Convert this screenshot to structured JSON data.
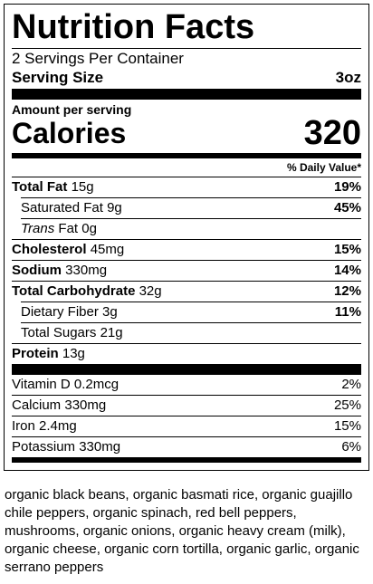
{
  "label": {
    "title": "Nutrition Facts",
    "servings": "2 Servings Per Container",
    "serving_size": {
      "name": "Serving Size",
      "value": "3oz"
    },
    "amount_per_serving": "Amount per serving",
    "calories": {
      "name": "Calories",
      "value": "320"
    },
    "dv_header": "% Daily Value*",
    "nutrients": [
      {
        "name": "Total Fat",
        "amount": "15g",
        "dv": "19%"
      },
      {
        "name": "Saturated Fat",
        "amount": "9g",
        "dv": "45%"
      },
      {
        "prefix": "Trans",
        "name": "Fat",
        "amount": "0g"
      },
      {
        "name": "Cholesterol",
        "amount": "45mg",
        "dv": "15%"
      },
      {
        "name": "Sodium",
        "amount": "330mg",
        "dv": "14%"
      },
      {
        "name": "Total Carbohydrate",
        "amount": "32g",
        "dv": "12%"
      },
      {
        "name": "Dietary Fiber",
        "amount": "3g",
        "dv": "11%"
      },
      {
        "name": "Total Sugars",
        "amount": "21g"
      },
      {
        "name": "Protein",
        "amount": "13g"
      }
    ],
    "vitamins": [
      {
        "name": "Vitamin D",
        "amount": "0.2mcg",
        "dv": "2%"
      },
      {
        "name": "Calcium",
        "amount": "330mg",
        "dv": "25%"
      },
      {
        "name": "Iron",
        "amount": "2.4mg",
        "dv": "15%"
      },
      {
        "name": "Potassium",
        "amount": "330mg",
        "dv": "6%"
      }
    ]
  },
  "ingredients": "organic black beans, organic basmati rice, organic guajillo chile peppers, organic spinach, red bell peppers, mushrooms, organic onions, organic heavy cream (milk), organic cheese, organic corn tortilla, organic garlic, organic serrano peppers"
}
